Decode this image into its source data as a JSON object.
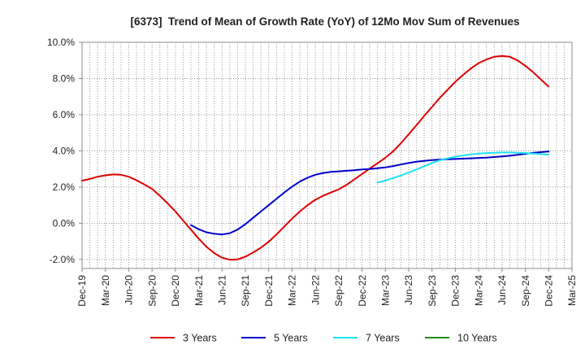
{
  "chart_data": {
    "type": "line",
    "title": "[6373]  Trend of Mean of Growth Rate (YoY) of 12Mo Mov Sum of Revenues",
    "xlabel": "",
    "ylabel": "",
    "y_unit": "%",
    "ylim": [
      -2.5,
      10
    ],
    "y_ticks": [
      -2,
      0,
      2,
      4,
      6,
      8,
      10
    ],
    "y_tick_labels": [
      "-2.0%",
      "0.0%",
      "2.0%",
      "4.0%",
      "6.0%",
      "8.0%",
      "10.0%"
    ],
    "x_range": [
      "Dec-19",
      "Mar-25"
    ],
    "x_tick_labels": [
      "Dec-19",
      "Mar-20",
      "Jun-20",
      "Sep-20",
      "Dec-20",
      "Mar-21",
      "Jun-21",
      "Sep-21",
      "Dec-21",
      "Mar-22",
      "Jun-22",
      "Sep-22",
      "Dec-22",
      "Mar-23",
      "Jun-23",
      "Sep-23",
      "Dec-23",
      "Mar-24",
      "Jun-24",
      "Sep-24",
      "Dec-24",
      "Mar-25"
    ],
    "grid": true,
    "legend_position": "bottom",
    "series": [
      {
        "name": "3 Years",
        "color": "#dd0000",
        "start": "Dec-19",
        "values": [
          2.35,
          2.45,
          2.57,
          2.65,
          2.7,
          2.68,
          2.57,
          2.38,
          2.15,
          1.9,
          1.52,
          1.1,
          0.65,
          0.15,
          -0.35,
          -0.85,
          -1.3,
          -1.65,
          -1.9,
          -2.02,
          -2.0,
          -1.85,
          -1.62,
          -1.35,
          -1.02,
          -0.62,
          -0.18,
          0.25,
          0.65,
          1.0,
          1.3,
          1.52,
          1.7,
          1.87,
          2.12,
          2.42,
          2.72,
          3.02,
          3.32,
          3.62,
          3.98,
          4.42,
          4.92,
          5.42,
          5.93,
          6.43,
          6.93,
          7.38,
          7.82,
          8.2,
          8.55,
          8.85,
          9.05,
          9.2,
          9.25,
          9.2,
          9.0,
          8.7,
          8.35,
          7.95,
          7.55
        ]
      },
      {
        "name": "5 Years",
        "color": "#0000cc",
        "start": "Feb-21",
        "values": [
          -0.1,
          -0.33,
          -0.5,
          -0.58,
          -0.62,
          -0.55,
          -0.35,
          -0.05,
          0.3,
          0.65,
          1.0,
          1.35,
          1.7,
          2.02,
          2.3,
          2.52,
          2.68,
          2.78,
          2.84,
          2.87,
          2.9,
          2.93,
          2.97,
          3.0,
          3.04,
          3.09,
          3.16,
          3.25,
          3.33,
          3.4,
          3.45,
          3.49,
          3.52,
          3.54,
          3.55,
          3.57,
          3.59,
          3.61,
          3.63,
          3.66,
          3.69,
          3.73,
          3.78,
          3.84,
          3.89,
          3.93,
          3.97
        ]
      },
      {
        "name": "7 Years",
        "color": "#1ee3f2",
        "start": "Feb-23",
        "values": [
          2.25,
          2.36,
          2.5,
          2.64,
          2.8,
          2.97,
          3.15,
          3.33,
          3.48,
          3.59,
          3.68,
          3.75,
          3.81,
          3.85,
          3.88,
          3.9,
          3.91,
          3.91,
          3.9,
          3.88,
          3.85,
          3.82,
          3.79
        ]
      },
      {
        "name": "10 Years",
        "color": "#1e8c1e",
        "start": null,
        "values": []
      }
    ]
  }
}
